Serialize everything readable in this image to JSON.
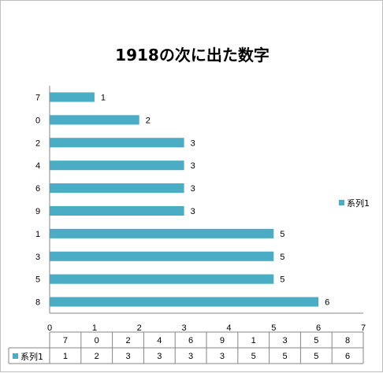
{
  "chart_data": {
    "type": "bar",
    "orientation": "horizontal",
    "title": "1918の次に出た数字",
    "categories": [
      "8",
      "5",
      "3",
      "1",
      "9",
      "6",
      "4",
      "2",
      "0",
      "7"
    ],
    "series": [
      {
        "name": "系列1",
        "values": [
          6,
          5,
          5,
          5,
          3,
          3,
          3,
          3,
          2,
          1
        ],
        "color": "#4bacc6"
      }
    ],
    "xlim": [
      0,
      7
    ],
    "x_ticks": [
      "0",
      "1",
      "2",
      "3",
      "4",
      "5",
      "6",
      "7"
    ],
    "grid": false,
    "legend_position": "right",
    "data_table": true
  }
}
